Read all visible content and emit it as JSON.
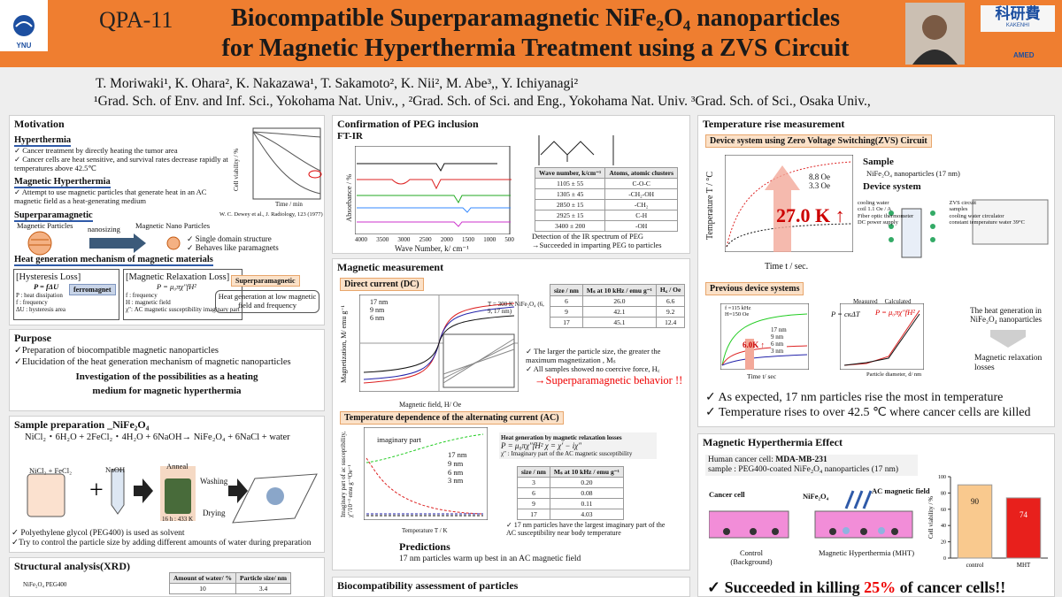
{
  "header": {
    "code": "QPA-11",
    "title_line1": "Biocompatible Superparamagnetic NiFe₂O₄ nanoparticles",
    "title_line2": "for Magnetic Hyperthermia Treatment using a ZVS Circuit",
    "logo_left": "YNU",
    "logo_right": "科研費",
    "logo_right_sub": "KAKENHI",
    "logo_amed": "AMED"
  },
  "authors": "T. Moriwaki¹, K. Ohara², K. Nakazawa¹, T. Sakamoto², K. Nii², M. Abe³,, Y. Ichiyanagi²",
  "affiliations": "¹Grad. Sch. of Env. and Inf. Sci., Yokohama Nat. Univ., , ²Grad. Sch. of Sci. and Eng., Yokohama Nat. Univ. ³Grad. Sch. of Sci., Osaka Univ.,",
  "motivation": {
    "title": "Motivation",
    "hyperthermia_title": "Hyperthermia",
    "hyperthermia_points": [
      "✓ Cancer treatment by directly heating the tumor area",
      "✓ Cancer cells are heat sensitive, and survival rates decrease rapidly at temperatures above 42.5℃"
    ],
    "mh_title": "Magnetic Hyperthermia",
    "mh_points": [
      "✓ Attempt to use magnetic particles that generate heat in an AC magnetic field as a heat-generating medium"
    ],
    "graph_ylabel": "Cell viability / %",
    "graph_xlabel": "Time / min",
    "citation": "W. C. Dewey et al., J. Radiology, 123 (1977)",
    "sp_title": "Superparamagnetic",
    "mp_label": "Magnetic Particles",
    "nanosizing": "nanosizing",
    "mnp_label": "Magnetic Nano Particles",
    "sp_points": [
      "✓ Single domain structure",
      "✓ Behaves like paramagnets"
    ],
    "heat_title": "Heat generation mechanism of magnetic materials",
    "hysteresis_title": "[Hysteresis Loss]",
    "hysteresis_formula": "P = fΔU",
    "hysteresis_tag": "ferromagnet",
    "hysteresis_legend": [
      "P : heat dissipation",
      "f : frequency",
      "ΔU : hysteresis area"
    ],
    "relaxation_title": "[Magnetic Relaxation Loss]",
    "relaxation_formula": "P = μ₀πχ″fH²",
    "relaxation_tag": "Superparamagnetic",
    "relaxation_legend": [
      "f : frequency",
      "H : magnetic field",
      "χ″: AC magnetic susceptibility imaginary part"
    ],
    "relaxation_note": "Heat generation at low magnetic field and frequency"
  },
  "purpose": {
    "title": "Purpose",
    "points": [
      "✓Preparation of biocompatible magnetic nanoparticles",
      "✓Elucidation of the heat generation mechanism of magnetic nanoparticles"
    ],
    "conclusion": "Investigation of the possibilities as a heating medium for magnetic hyperthermia"
  },
  "sample": {
    "title": "Sample preparation _NiFe₂O₄",
    "reaction": "NiCl₂・6H₂O + 2FeCl₂・4H₂O + 6NaOH→ NiFe₂O₄ + 6NaCl + water",
    "beaker1": "NiCl₂ + FeCl₂",
    "tube": "NaOH",
    "anneal": "Anneal",
    "anneal_cond": "16 h : 433 K",
    "washing": "Washing",
    "drying": "Drying",
    "points": [
      "✓ Polyethylene glycol (PEG400) is used as solvent",
      "✓Try to control the particle size by adding different amounts of water during preparation"
    ]
  },
  "xrd": {
    "title": "Structural analysis(XRD)",
    "sample_label": "NiFe₂O₄ PEG400",
    "table_header": [
      "Amount of water/ %",
      "Particle size/ nm"
    ],
    "table_rows": [
      [
        "10",
        "3.4"
      ]
    ]
  },
  "peg": {
    "title": "Confirmation of PEG inclusion",
    "ftir": "FT-IR",
    "ylabel": "Absorbance / %",
    "xlabel": "Wave Number, k/ cm⁻¹",
    "xticks": [
      "4000",
      "3500",
      "3000",
      "2500",
      "2000",
      "1500",
      "1000",
      "500"
    ],
    "table_header": [
      "Wave number, k/cm⁻¹",
      "Atoms, atomic clusters"
    ],
    "table_rows": [
      [
        "1105 ± 55",
        "C-O-C"
      ],
      [
        "1305 ± 45",
        "-CH₂-OH"
      ],
      [
        "2850 ± 15",
        "-CH₂"
      ],
      [
        "2925 ± 15",
        "C-H"
      ],
      [
        "3400 ± 200",
        "-OH"
      ]
    ],
    "note": "Detection of the IR spectrum of PEG →Succeeded in imparting PEG to particles"
  },
  "magnetic": {
    "title": "Magnetic measurement",
    "dc_title": "Direct current (DC)",
    "dc_ylabel": "Magnetization, M/ emu g⁻¹",
    "dc_xlabel": "Magnetic field, H/ Oe",
    "dc_legend": [
      "17 nm",
      "9 nm",
      "6 nm"
    ],
    "dc_cond": "T = 300 K NiFe₂O₄ (6, 9, 17 nm)",
    "dc_table_header": [
      "size / nm",
      "Mₛ at 10 kHz / emu g⁻¹",
      "H꜀ / Oe"
    ],
    "dc_table_rows": [
      [
        "6",
        "26.0",
        "6.6"
      ],
      [
        "9",
        "42.1",
        "9.2"
      ],
      [
        "17",
        "45.1",
        "12.4"
      ]
    ],
    "dc_points": [
      "✓ The larger the particle size, the greater the maximum magnetization , Mₛ",
      "✓ All samples showed no coercive force, H꜀"
    ],
    "dc_conclusion": "→Superparamagnetic behavior !!",
    "ac_title": "Temperature dependence of the alternating current (AC)",
    "ac_ylabel": "Imaginary part of ac susceptibility, χ″/10⁻³ emu g⁻¹Oe⁻¹",
    "ac_xlabel": "Temperature T / K",
    "ac_inset": "imaginary part",
    "ac_legend": [
      "17 nm",
      "9 nm",
      "6 nm",
      "3 nm"
    ],
    "ac_formula_title": "Heat generation by magnetic relaxation losses",
    "ac_formula": "P = μ₀πχ″fH²    χ = χ′ − iχ″",
    "ac_formula_note": "χ″ : Imaginary part of the AC magnetic susceptibility",
    "ac_table_header": [
      "size / nm",
      "Mₛ at 10 kHz / emu g⁻¹"
    ],
    "ac_table_rows": [
      [
        "3",
        "0.20"
      ],
      [
        "6",
        "0.08"
      ],
      [
        "9",
        "0.11"
      ],
      [
        "17",
        "4.03"
      ]
    ],
    "ac_point": "✓ 17 nm particles have the largest imaginary part of the AC susceptibility near body temperature",
    "predictions_title": "Predictions",
    "predictions": "17 nm particles warm up best in an AC magnetic field"
  },
  "biocompat": {
    "title": "Biocompatibility assessment of particles"
  },
  "temperature": {
    "title": "Temperature rise measurement",
    "zvs_title": "Device system using Zero Voltage Switching(ZVS) Circuit",
    "ylabel": "Temperature T / °C",
    "xlabel": "Time t / sec.",
    "legend": [
      "8.8 Oe",
      "3.3 Oe"
    ],
    "rise": "27.0 K ↑",
    "sample_title": "Sample",
    "sample_desc": "NiFe₂O₄ nanoparticles (17 nm)",
    "device_title": "Device system",
    "device_labels": [
      "cooling water",
      "coil 1.1 Oe / A",
      "Fiber optic thermometer",
      "DC power supply",
      "ZVS circuit",
      "samples",
      "cooling water circulator",
      "constant temperature water 39°C"
    ],
    "prev_title": "Previous device systems",
    "prev_rise": "6.0K ↑",
    "prev_cond": "f =115 kHz H=150 Oe",
    "prev_xlabel": "Time t/ sec",
    "prev_legend": [
      "17 nm",
      "9 nm",
      "6 nm",
      "3 nm"
    ],
    "calc_formula1": "P = cκΔT",
    "calc_formula2": "P = μ₀πχ″fH²",
    "calc_labels": [
      "Measured",
      "Calculated"
    ],
    "calc_xlabel": "Particle diameter, d/ nm",
    "heat_note": "The heat generation in NiFe₂O₄ nanoparticles",
    "relax_note": "Magnetic relaxation losses",
    "points": [
      "✓ As expected, 17 nm particles rise the most in temperature",
      "✓ Temperature rises to over 42.5 ℃ where cancer cells are killed"
    ]
  },
  "effect": {
    "title": "Magnetic Hyperthermia Effect",
    "cell_line_label": "Human cancer cell: ",
    "cell_line": "MDA-MB-231",
    "sample": "sample : PEG400-coated NiFe₂O₄ nanoparticles (17 nm)",
    "cancer_cell": "Cancer cell",
    "nife": "NiFe₂O₄",
    "ac_field": "AC magnetic field",
    "control_caption": "Control (Background)",
    "mht_caption": "Magnetic Hyperthermia (MHT)",
    "conclusion_a": "✓ Succeeded in killing ",
    "conclusion_b": "25%",
    "conclusion_c": " of cancer cells!!",
    "chart": {
      "type": "bar",
      "ylabel": "Cell viability / %",
      "categories": [
        "control",
        "MHT"
      ],
      "values": [
        90,
        74
      ],
      "colors": [
        "#f9c98e",
        "#e8201c"
      ],
      "ylim": [
        0,
        100
      ],
      "yticks": [
        0,
        20,
        40,
        60,
        80,
        100
      ]
    }
  }
}
